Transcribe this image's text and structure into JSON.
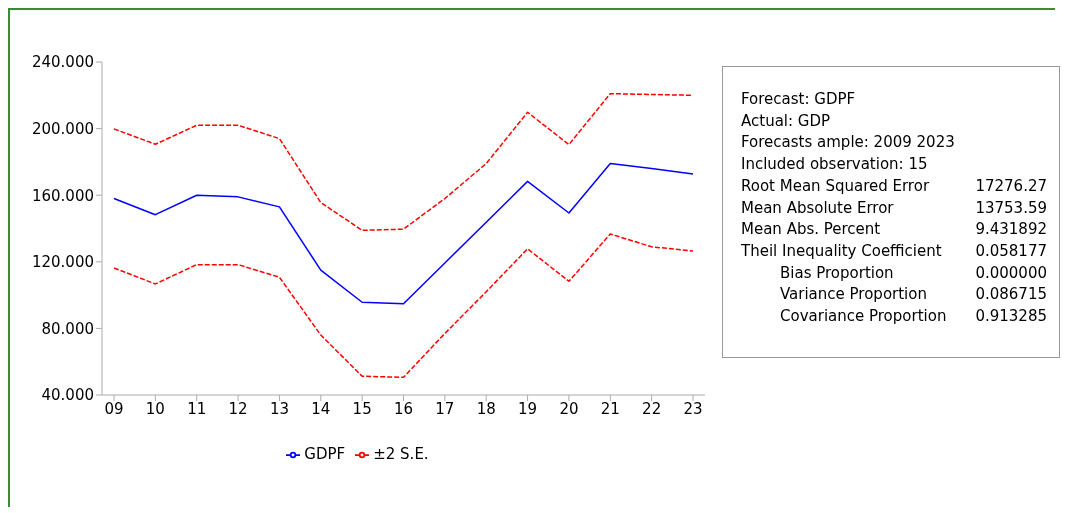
{
  "chart_data": {
    "type": "line",
    "categories": [
      "09",
      "10",
      "11",
      "12",
      "13",
      "14",
      "15",
      "16",
      "17",
      "18",
      "19",
      "20",
      "21",
      "22",
      "23"
    ],
    "series": [
      {
        "name": "GDPF",
        "color": "#0000ff",
        "line_style": "solid",
        "values": [
          158,
          148.3,
          160,
          159,
          153,
          115,
          95.7,
          94.8,
          119.3,
          143.8,
          168.3,
          149.3,
          179,
          176,
          172.8
        ]
      },
      {
        "name": "±2 S.E.",
        "color": "#ff0000",
        "line_style": "dashed",
        "values": [
          199.8,
          190.6,
          202,
          202,
          194,
          155.6,
          138.9,
          139.6,
          158,
          179,
          209.8,
          190.4,
          221,
          220.5,
          220
        ]
      },
      {
        "color": "#ff0000",
        "line_style": "dashed",
        "values": [
          116.3,
          106.7,
          118.3,
          118.3,
          110.7,
          76,
          51.3,
          50.6,
          77,
          102,
          127.8,
          108.3,
          136.7,
          129,
          126.5
        ]
      }
    ],
    "ylim": [
      40,
      240
    ],
    "yticks": [
      {
        "value": 40,
        "label": "40.000"
      },
      {
        "value": 80,
        "label": "80.000"
      },
      {
        "value": 120,
        "label": "120.000"
      },
      {
        "value": 160,
        "label": "160.000"
      },
      {
        "value": 200,
        "label": "200.000"
      },
      {
        "value": 240,
        "label": "240.000"
      }
    ],
    "grid": false,
    "legend": "bottom",
    "marker": "none",
    "annotations": [
      "Forecast: GDPF",
      "Actual: GDP",
      "Forecasts ample: 2009 2023",
      "Included observation: 15",
      "Root Mean Squared Error",
      "17276.27",
      "Mean Absolute Error",
      "13753.59",
      "Mean Abs. Percent",
      "9.431892",
      "Theil Inequality Coefficient",
      "0.058177",
      "Bias Proportion",
      "0.000000",
      "Variance Proportion",
      "0.086715",
      "Covariance Proportion",
      "0.913285"
    ]
  }
}
